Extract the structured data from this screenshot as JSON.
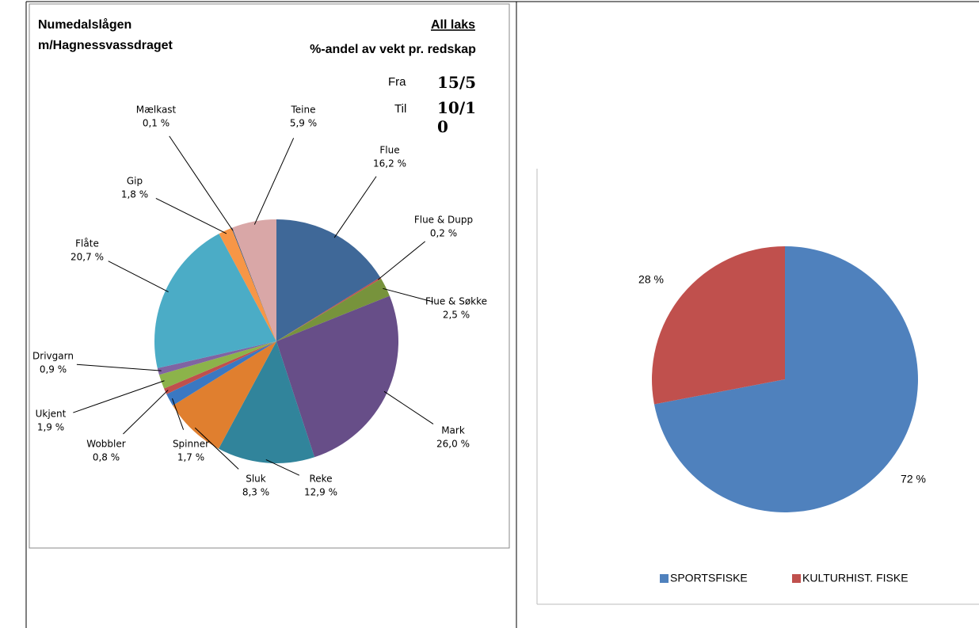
{
  "chart_data": [
    {
      "type": "pie",
      "title": [
        "Numedalslågen",
        "m/Hagnessvassdraget"
      ],
      "subtitle": "All laks",
      "annotation": "%-andel av vekt pr. redskap",
      "period": [
        {
          "label": "Fra",
          "value": "15/5"
        },
        {
          "label": "Til",
          "value": "10/10"
        }
      ],
      "categories": [
        "Flue",
        "Flue & Dupp",
        "Flue & Søkke",
        "Mark",
        "Reke",
        "Sluk",
        "Spinner",
        "Wobbler",
        "Ukjent",
        "Drivgarn",
        "Flåte",
        "Gip",
        "Mælkast",
        "Teine"
      ],
      "values": [
        16.2,
        0.2,
        2.5,
        26.0,
        12.9,
        8.3,
        1.7,
        0.8,
        1.9,
        0.9,
        20.7,
        1.8,
        0.1,
        5.9
      ],
      "value_labels": [
        "16,2 %",
        "0,2 %",
        "2,5 %",
        "26,0 %",
        "12,9 %",
        "8,3 %",
        "1,7 %",
        "0,8 %",
        "1,9 %",
        "0,9 %",
        "20,7 %",
        "1,8 %",
        "0,1 %",
        "5,9 %"
      ],
      "colors": [
        "#3f6898",
        "#c0504d",
        "#77933c",
        "#674e88",
        "#31849b",
        "#e07f2f",
        "#3a78c2",
        "#c0504d",
        "#8cb34a",
        "#8064a2",
        "#4bacc6",
        "#f79646",
        "#2c4d75",
        "#d9a7a7"
      ]
    },
    {
      "type": "pie",
      "categories": [
        "SPORTSFISKE",
        "KULTURHIST. FISKE"
      ],
      "values": [
        72,
        28
      ],
      "value_labels": [
        "72 %",
        "28 %"
      ],
      "colors": [
        "#4f81bd",
        "#c0504d"
      ],
      "legend": "bottom"
    }
  ]
}
